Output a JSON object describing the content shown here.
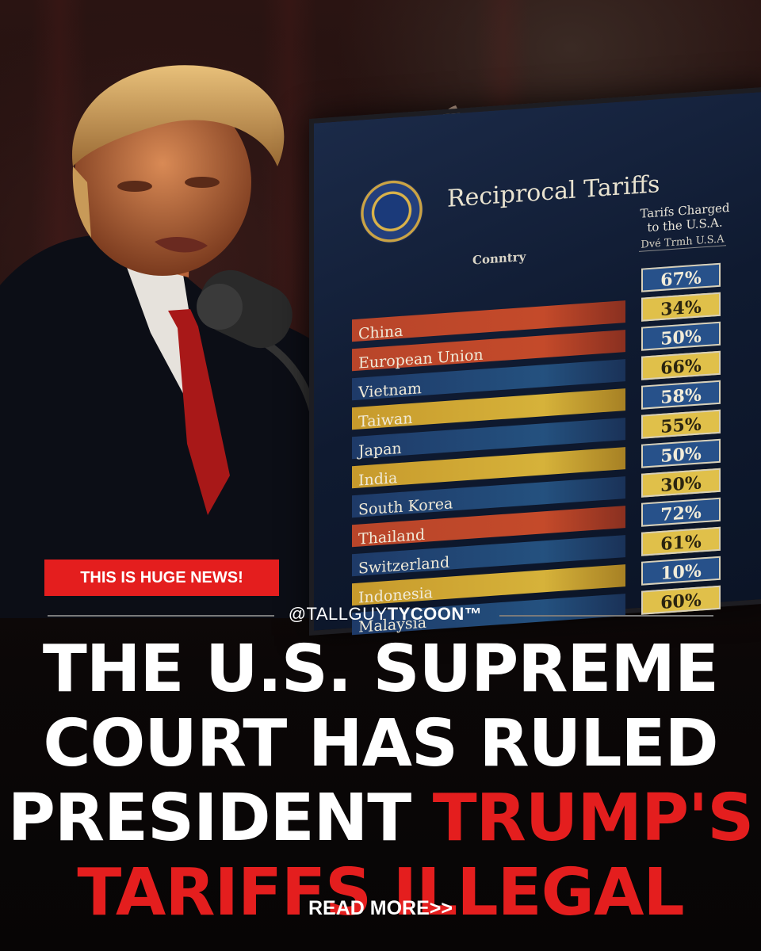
{
  "board": {
    "title": "Reciprocal Tariffs",
    "col_country": "Conntry",
    "col_tariff_line1": "Tarifs Charged",
    "col_tariff_line2": "to the U.S.A.",
    "col_sub": "Dvé Trmh U.S.A",
    "rows": [
      {
        "country": "",
        "value": "67%",
        "bar": "dark",
        "box": "blue"
      },
      {
        "country": "China",
        "value": "34%",
        "bar": "red",
        "box": "yellow"
      },
      {
        "country": "European Union",
        "value": "50%",
        "bar": "red",
        "box": "blue"
      },
      {
        "country": "Vietnam",
        "value": "66%",
        "bar": "blue",
        "box": "yellow"
      },
      {
        "country": "Taiwan",
        "value": "58%",
        "bar": "yellow",
        "box": "blue"
      },
      {
        "country": "Japan",
        "value": "55%",
        "bar": "blue",
        "box": "yellow"
      },
      {
        "country": "India",
        "value": "50%",
        "bar": "yellow",
        "box": "blue"
      },
      {
        "country": "South Korea",
        "value": "30%",
        "bar": "blue",
        "box": "yellow"
      },
      {
        "country": "Thailand",
        "value": "72%",
        "bar": "red",
        "box": "blue"
      },
      {
        "country": "Switzerland",
        "value": "61%",
        "bar": "blue",
        "box": "yellow"
      },
      {
        "country": "Indonesia",
        "value": "10%",
        "bar": "yellow",
        "box": "blue"
      },
      {
        "country": "Malaysia",
        "value": "60%",
        "bar": "blue",
        "box": "yellow"
      }
    ]
  },
  "badge": "THIS IS HUGE NEWS!",
  "handle": {
    "prefix": "@TALLGUY",
    "bold": "TYCOON™"
  },
  "headline": {
    "line1": "THE U.S. SUPREME",
    "line2": "COURT HAS RULED",
    "line3_white": "PRESIDENT ",
    "line3_red": "TRUMP'S",
    "line4_red": "TARIFFS ILLEGAL"
  },
  "read_more": "READ MORE>>",
  "colors": {
    "accent_red": "#e41e1e",
    "bar_blue": "#24517f",
    "bar_yellow": "#d6b23a",
    "bar_red": "#c44a2a"
  }
}
